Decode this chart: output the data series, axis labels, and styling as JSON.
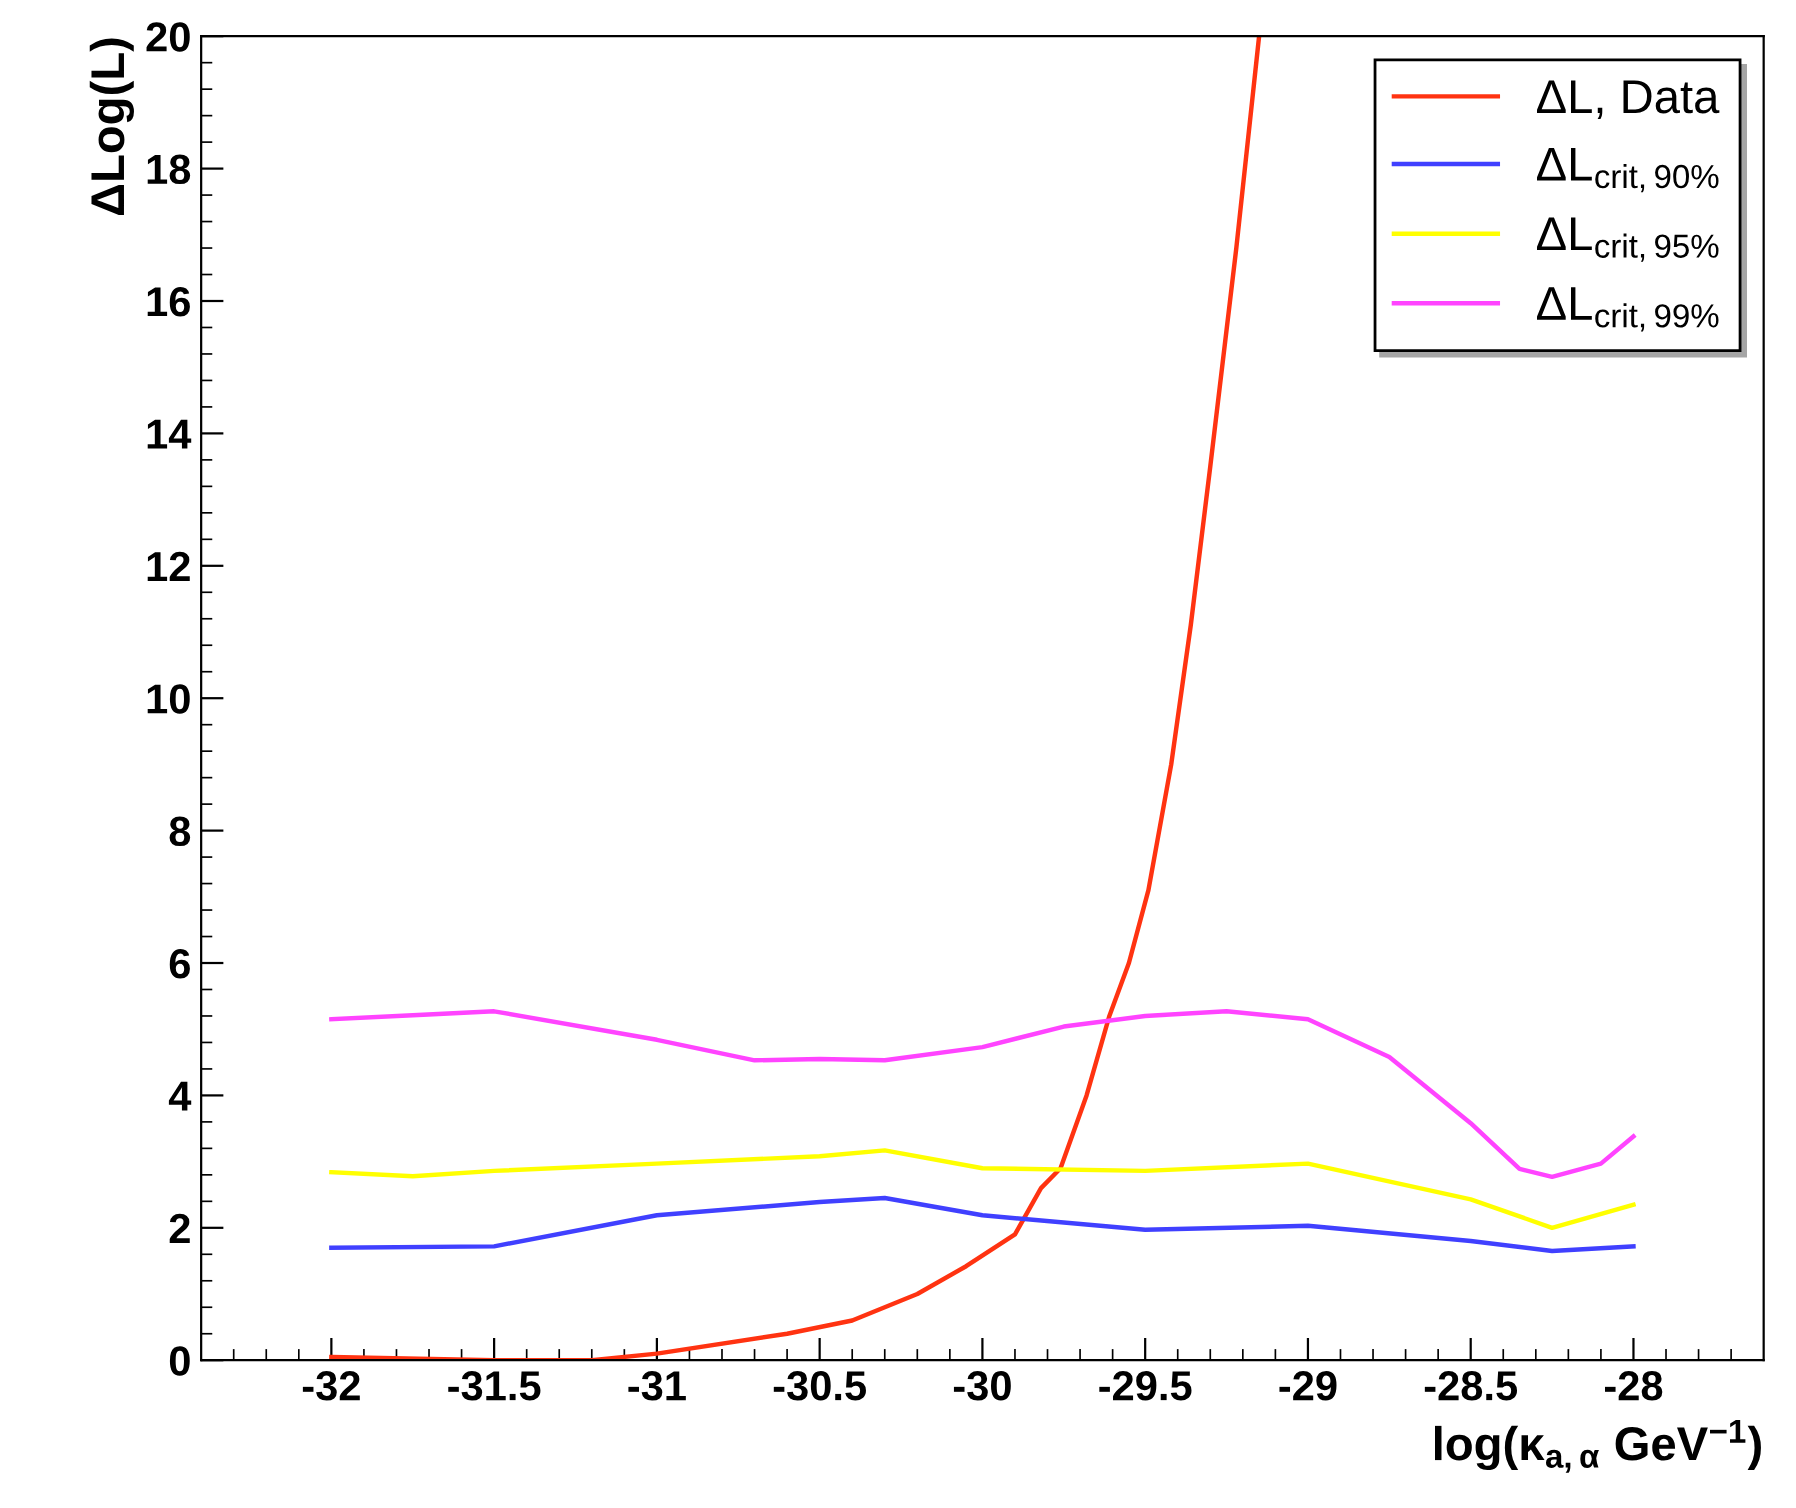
{
  "chart_data": {
    "type": "line",
    "xlabel": "log(κ$_{a,α}$ GeV$^{−1}$)",
    "ylabel": "ΔLog(L)",
    "xlim": [
      -32.4,
      -27.6
    ],
    "ylim": [
      0,
      20
    ],
    "xticks": [
      -32,
      -31.5,
      -31,
      -30.5,
      -30,
      -29.5,
      -29,
      -28.5,
      -28
    ],
    "yticks": [
      0,
      2,
      4,
      6,
      8,
      10,
      12,
      14,
      16,
      18,
      20
    ],
    "grid": false,
    "legend": "top right",
    "marker": "none",
    "line_style": "solid",
    "series": [
      {
        "name": "ΔL, Data",
        "color": "#ff3311",
        "x": [
          -32,
          -31.5,
          -31.2,
          -31,
          -30.6,
          -30.4,
          -30.2,
          -30.05,
          -29.9,
          -29.82,
          -29.76,
          -29.68,
          -29.61,
          -29.55,
          -29.49,
          -29.42,
          -29.36,
          -29.3,
          -29.22,
          -29.15
        ],
        "values": [
          0.05,
          0,
          0,
          0.1,
          0.4,
          0.6,
          1.0,
          1.42,
          1.9,
          2.6,
          2.9,
          4.0,
          5.2,
          6.0,
          7.1,
          9.0,
          11.1,
          13.5,
          16.8,
          20
        ]
      },
      {
        "name": "ΔL$_{crit,90%}$",
        "color": "#4040ff",
        "x": [
          -32,
          -31.5,
          -31,
          -30.5,
          -30.3,
          -30,
          -29.5,
          -29,
          -28.5,
          -28.25,
          -28
        ],
        "values": [
          1.7,
          1.72,
          2.19,
          2.39,
          2.45,
          2.19,
          1.97,
          2.03,
          1.8,
          1.65,
          1.72
        ]
      },
      {
        "name": "ΔL$_{crit,95%}$",
        "color": "#ffff00",
        "x": [
          -32,
          -31.75,
          -31.5,
          -31,
          -30.5,
          -30.3,
          -30,
          -29.5,
          -29,
          -28.5,
          -28.25,
          -28
        ],
        "values": [
          2.84,
          2.78,
          2.86,
          2.97,
          3.08,
          3.17,
          2.9,
          2.86,
          2.97,
          2.43,
          2.0,
          2.35
        ]
      },
      {
        "name": "ΔL$_{crit,99%}$",
        "color": "#ff44ff",
        "x": [
          -32,
          -31.5,
          -31,
          -30.7,
          -30.5,
          -30.3,
          -30,
          -29.75,
          -29.5,
          -29.25,
          -29,
          -28.75,
          -28.5,
          -28.35,
          -28.25,
          -28.1,
          -28
        ],
        "values": [
          5.15,
          5.27,
          4.84,
          4.53,
          4.55,
          4.53,
          4.73,
          5.04,
          5.2,
          5.27,
          5.15,
          4.58,
          3.58,
          2.89,
          2.77,
          2.97,
          3.38
        ]
      }
    ]
  }
}
